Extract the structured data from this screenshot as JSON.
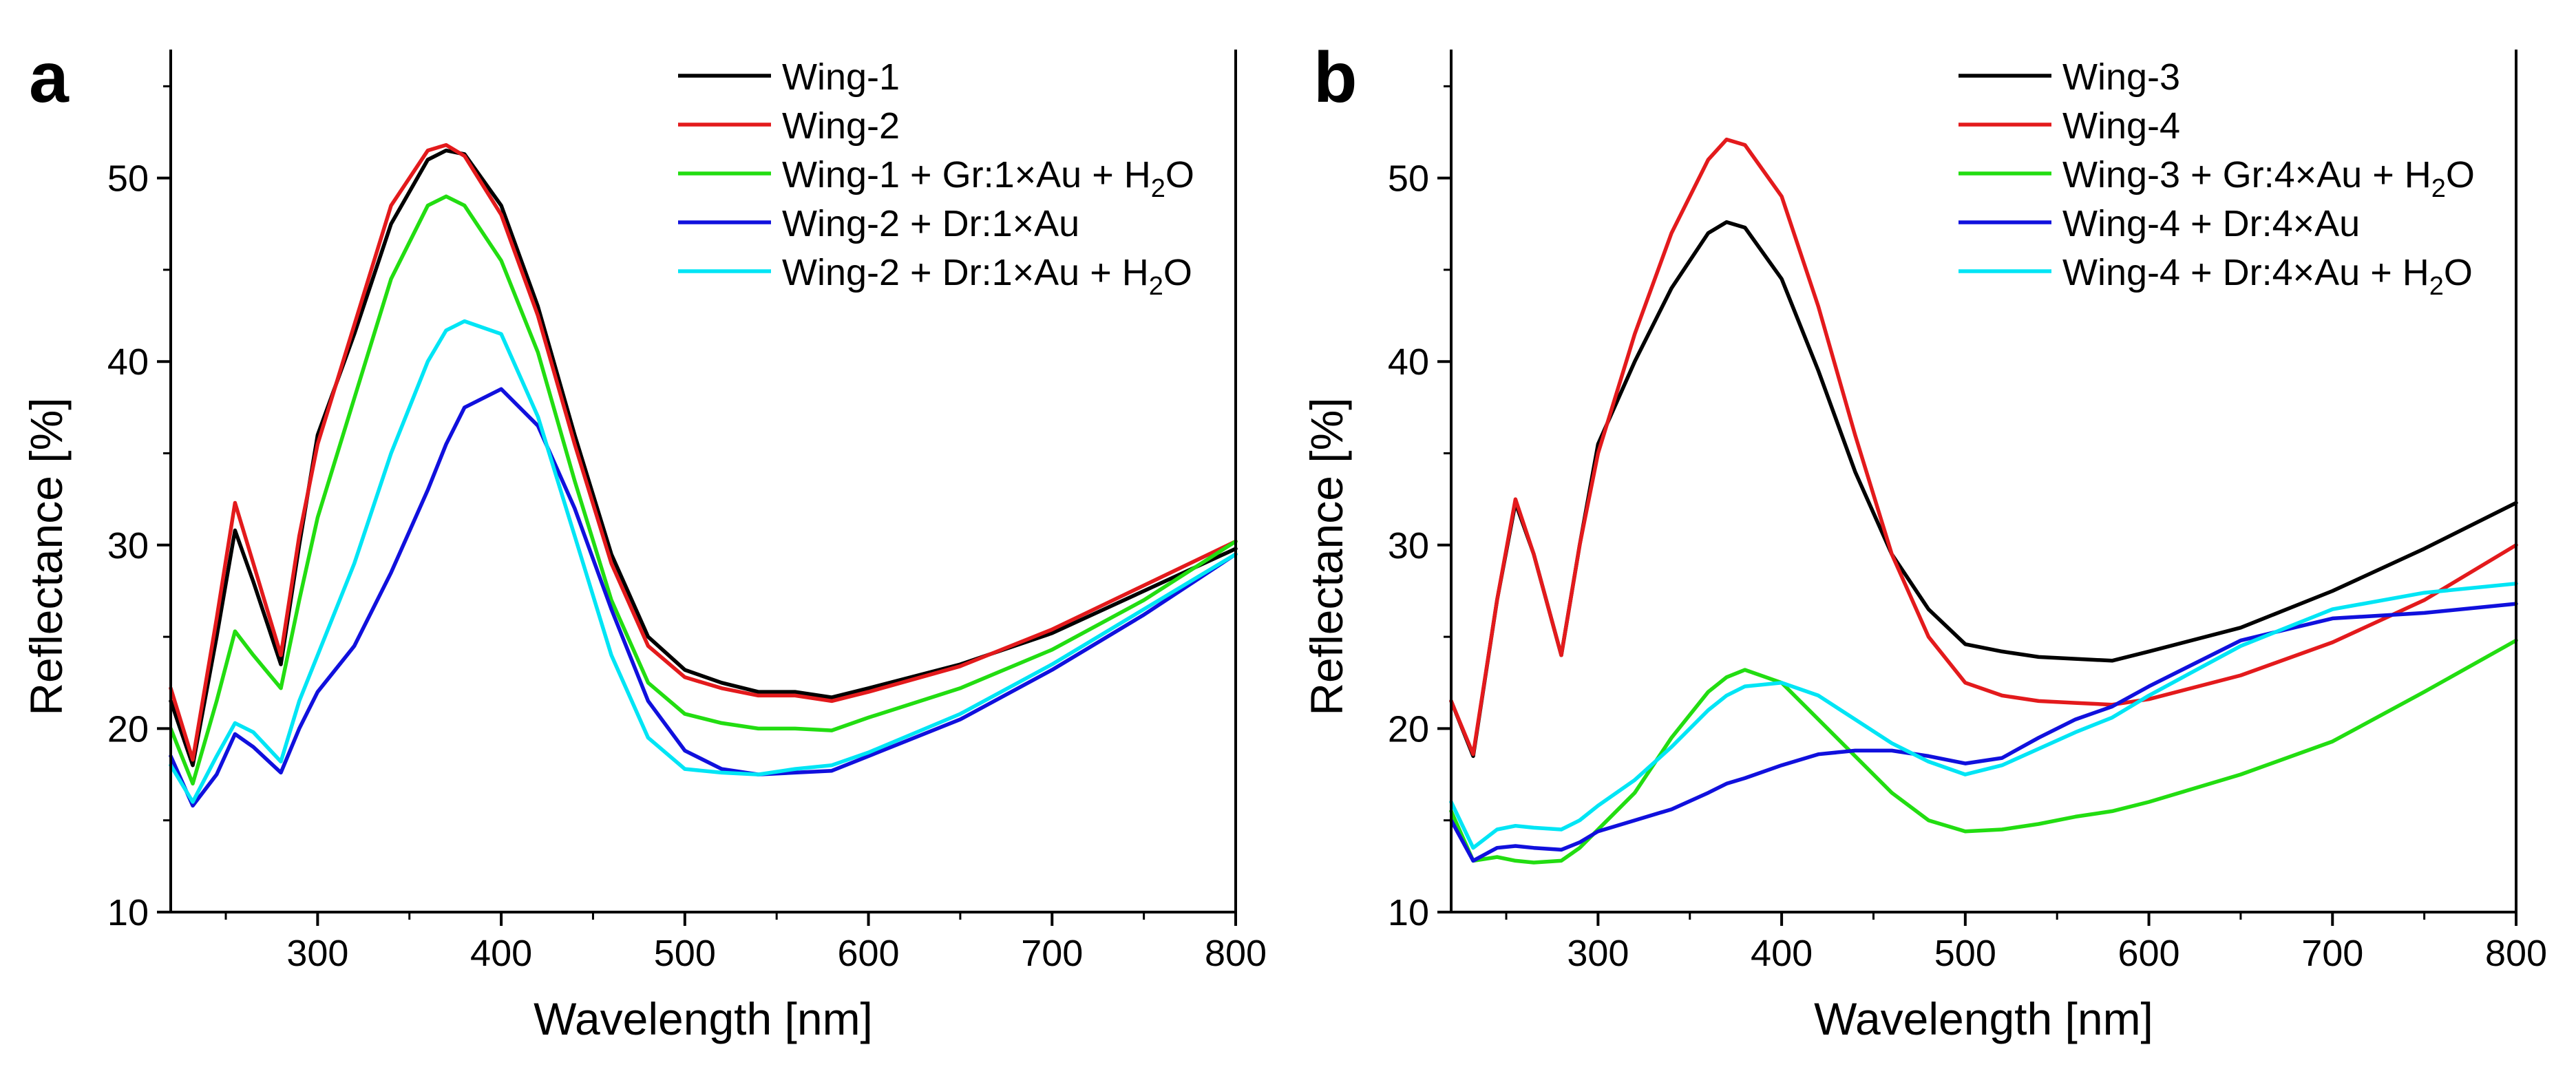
{
  "chart_data": [
    {
      "type": "line",
      "panel": "a",
      "xlabel": "Wavelength [nm]",
      "ylabel": "Reflectance [%]",
      "xlim": [
        220,
        800
      ],
      "ylim": [
        10,
        57
      ],
      "xticks": [
        300,
        400,
        500,
        600,
        700,
        800
      ],
      "yticks": [
        10,
        20,
        30,
        40,
        50
      ],
      "x": [
        220,
        232,
        245,
        255,
        265,
        280,
        290,
        300,
        320,
        340,
        360,
        370,
        380,
        400,
        420,
        440,
        460,
        480,
        500,
        520,
        540,
        560,
        580,
        600,
        650,
        700,
        750,
        800
      ],
      "series": [
        {
          "name": "Wing-1",
          "color": "#000000",
          "values": [
            21.5,
            18.0,
            25.0,
            30.8,
            28.0,
            23.5,
            30.0,
            36.0,
            41.5,
            47.5,
            51.0,
            51.5,
            51.3,
            48.5,
            43.0,
            36.0,
            29.5,
            25.0,
            23.2,
            22.5,
            22.0,
            22.0,
            21.7,
            22.2,
            23.5,
            25.2,
            27.5,
            29.8
          ]
        },
        {
          "name": "Wing-2",
          "color": "#e31a1c",
          "values": [
            22.2,
            18.3,
            26.0,
            32.3,
            29.0,
            24.0,
            30.5,
            35.5,
            42.0,
            48.5,
            51.5,
            51.8,
            51.2,
            48.0,
            42.5,
            35.5,
            29.0,
            24.5,
            22.8,
            22.2,
            21.8,
            21.8,
            21.5,
            22.0,
            23.4,
            25.4,
            27.8,
            30.2
          ]
        },
        {
          "name": "Wing-1 + Gr:1×Au + H",
          "color": "#22dd11",
          "values": [
            20.0,
            17.0,
            21.5,
            25.3,
            24.0,
            22.2,
            27.0,
            31.5,
            38.0,
            44.5,
            48.5,
            49.0,
            48.5,
            45.5,
            40.5,
            33.5,
            27.0,
            22.5,
            20.8,
            20.3,
            20.0,
            20.0,
            19.9,
            20.6,
            22.2,
            24.3,
            27.0,
            30.2
          ]
        },
        {
          "name": "Wing-2 + Dr:1×Au",
          "color": "#1010dd",
          "values": [
            18.5,
            15.8,
            17.5,
            19.7,
            19.0,
            17.6,
            20.0,
            22.0,
            24.5,
            28.5,
            33.0,
            35.5,
            37.5,
            38.5,
            36.5,
            32.0,
            26.5,
            21.5,
            18.8,
            17.8,
            17.5,
            17.6,
            17.7,
            18.5,
            20.5,
            23.2,
            26.2,
            29.5
          ]
        },
        {
          "name": "Wing-2 + Dr:1×Au + H",
          "color": "#00e5f5",
          "values": [
            18.0,
            16.0,
            18.5,
            20.3,
            19.8,
            18.2,
            21.5,
            24.0,
            29.0,
            35.0,
            40.0,
            41.7,
            42.2,
            41.5,
            37.0,
            30.5,
            24.0,
            19.5,
            17.8,
            17.6,
            17.5,
            17.8,
            18.0,
            18.7,
            20.8,
            23.5,
            26.5,
            29.5
          ]
        }
      ],
      "legend": [
        {
          "prefix": "Wing-1",
          "sub": "",
          "suffix": ""
        },
        {
          "prefix": "Wing-2",
          "sub": "",
          "suffix": ""
        },
        {
          "prefix": "Wing-1 + Gr:1×Au + H",
          "sub": "2",
          "suffix": "O"
        },
        {
          "prefix": "Wing-2 + Dr:1×Au",
          "sub": "",
          "suffix": ""
        },
        {
          "prefix": "Wing-2 + Dr:1×Au + H",
          "sub": "2",
          "suffix": "O"
        }
      ]
    },
    {
      "type": "line",
      "panel": "b",
      "xlabel": "Wavelength [nm]",
      "ylabel": "Reflectance [%]",
      "xlim": [
        220,
        800
      ],
      "ylim": [
        10,
        57
      ],
      "xticks": [
        300,
        400,
        500,
        600,
        700,
        800
      ],
      "yticks": [
        10,
        20,
        30,
        40,
        50
      ],
      "x": [
        220,
        232,
        245,
        255,
        265,
        280,
        290,
        300,
        320,
        340,
        360,
        370,
        380,
        400,
        420,
        440,
        460,
        480,
        500,
        520,
        540,
        560,
        580,
        600,
        650,
        700,
        750,
        800
      ],
      "series": [
        {
          "name": "Wing-3",
          "color": "#000000",
          "values": [
            21.5,
            18.5,
            27.0,
            32.3,
            29.5,
            24.0,
            30.0,
            35.5,
            40.0,
            44.0,
            47.0,
            47.6,
            47.3,
            44.5,
            39.5,
            34.0,
            29.5,
            26.5,
            24.6,
            24.2,
            23.9,
            23.8,
            23.7,
            24.2,
            25.5,
            27.5,
            29.8,
            32.3
          ]
        },
        {
          "name": "Wing-4",
          "color": "#e31a1c",
          "values": [
            21.5,
            18.6,
            27.0,
            32.5,
            29.5,
            24.0,
            30.0,
            35.0,
            41.5,
            47.0,
            51.0,
            52.1,
            51.8,
            49.0,
            43.0,
            36.0,
            29.5,
            25.0,
            22.5,
            21.8,
            21.5,
            21.4,
            21.3,
            21.6,
            22.9,
            24.7,
            27.0,
            30.0
          ]
        },
        {
          "name": "Wing-3 + Gr:4×Au + H",
          "color": "#22dd11",
          "values": [
            15.5,
            12.8,
            13.0,
            12.8,
            12.7,
            12.8,
            13.5,
            14.5,
            16.5,
            19.5,
            22.0,
            22.8,
            23.2,
            22.5,
            20.5,
            18.5,
            16.5,
            15.0,
            14.4,
            14.5,
            14.8,
            15.2,
            15.5,
            16.0,
            17.5,
            19.3,
            22.0,
            24.8
          ]
        },
        {
          "name": "Wing-4 + Dr:4×Au",
          "color": "#1010dd",
          "values": [
            15.0,
            12.8,
            13.5,
            13.6,
            13.5,
            13.4,
            13.8,
            14.4,
            15.0,
            15.6,
            16.5,
            17.0,
            17.3,
            18.0,
            18.6,
            18.8,
            18.8,
            18.5,
            18.1,
            18.4,
            19.5,
            20.5,
            21.2,
            22.3,
            24.8,
            26.0,
            26.3,
            26.8
          ]
        },
        {
          "name": "Wing-4 + Dr:4×Au + H",
          "color": "#00e5f5",
          "values": [
            16.0,
            13.5,
            14.5,
            14.7,
            14.6,
            14.5,
            15.0,
            15.8,
            17.2,
            19.0,
            21.0,
            21.8,
            22.3,
            22.5,
            21.8,
            20.5,
            19.2,
            18.2,
            17.5,
            18.0,
            18.9,
            19.8,
            20.6,
            21.8,
            24.5,
            26.5,
            27.4,
            27.9
          ]
        }
      ],
      "legend": [
        {
          "prefix": "Wing-3",
          "sub": "",
          "suffix": ""
        },
        {
          "prefix": "Wing-4",
          "sub": "",
          "suffix": ""
        },
        {
          "prefix": "Wing-3 + Gr:4×Au + H",
          "sub": "2",
          "suffix": "O"
        },
        {
          "prefix": "Wing-4 + Dr:4×Au",
          "sub": "",
          "suffix": ""
        },
        {
          "prefix": "Wing-4 + Dr:4×Au + H",
          "sub": "2",
          "suffix": "O"
        }
      ]
    }
  ]
}
